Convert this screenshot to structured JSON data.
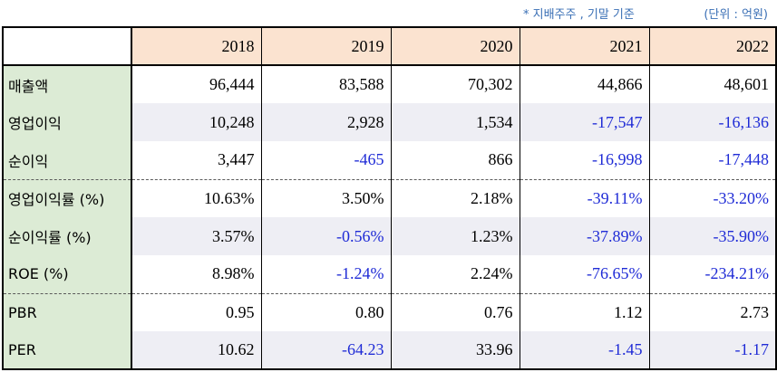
{
  "notes": {
    "basis": "* 지배주주 , 기말 기준",
    "unit": "(단위 : 억원)"
  },
  "colors": {
    "header_bg": "#fbe3d0",
    "label_bg": "#dcebd5",
    "shade_bg": "#eeeef4",
    "negative_text": "#1f2bd6"
  },
  "table": {
    "years": [
      "2018",
      "2019",
      "2020",
      "2021",
      "2022"
    ],
    "rows": [
      {
        "label": "매출액",
        "values": [
          "96,444",
          "83,588",
          "70,302",
          "44,866",
          "48,601"
        ]
      },
      {
        "label": "영업이익",
        "values": [
          "10,248",
          "2,928",
          "1,534",
          "-17,547",
          "-16,136"
        ]
      },
      {
        "label": "순이익",
        "values": [
          "3,447",
          "-465",
          "866",
          "-16,998",
          "-17,448"
        ]
      },
      {
        "label": "영업이익률 (%)",
        "values": [
          "10.63%",
          "3.50%",
          "2.18%",
          "-39.11%",
          "-33.20%"
        ]
      },
      {
        "label": "순이익률 (%)",
        "values": [
          "3.57%",
          "-0.56%",
          "1.23%",
          "-37.89%",
          "-35.90%"
        ]
      },
      {
        "label": "ROE (%)",
        "values": [
          "8.98%",
          "-1.24%",
          "2.24%",
          "-76.65%",
          "-234.21%"
        ]
      },
      {
        "label": "PBR",
        "values": [
          "0.95",
          "0.80",
          "0.76",
          "1.12",
          "2.73"
        ]
      },
      {
        "label": "PER",
        "values": [
          "10.62",
          "-64.23",
          "33.96",
          "-1.45",
          "-1.17"
        ]
      }
    ]
  }
}
